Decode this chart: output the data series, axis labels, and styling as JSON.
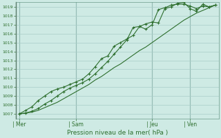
{
  "background_color": "#ceeae4",
  "grid_color": "#a8ccc8",
  "line_color1": "#2d6e2d",
  "line_color2": "#2d6e2d",
  "line_color3": "#2d6e2d",
  "spine_color": "#6a9a8a",
  "tick_color": "#2d6e2d",
  "xlabel": "Pression niveau de la mer( hPa )",
  "ylim": [
    1006.5,
    1019.5
  ],
  "yticks": [
    1007,
    1008,
    1009,
    1010,
    1011,
    1012,
    1013,
    1014,
    1015,
    1016,
    1017,
    1018,
    1019
  ],
  "xtick_labels": [
    "| Mer",
    "| Sam",
    "| Jeu",
    "| Ven"
  ],
  "xtick_positions": [
    0,
    9,
    21,
    27
  ],
  "total_points": 32,
  "series1": [
    1007.0,
    1007.1,
    1007.3,
    1007.6,
    1008.1,
    1008.5,
    1009.0,
    1009.5,
    1009.9,
    1010.2,
    1010.5,
    1010.9,
    1011.5,
    1012.2,
    1012.9,
    1013.7,
    1014.5,
    1015.3,
    1016.7,
    1016.8,
    1016.5,
    1017.0,
    1018.7,
    1018.9,
    1019.2,
    1019.3,
    1019.3,
    1019.1,
    1018.8,
    1019.1,
    1019.0,
    1019.2
  ],
  "series2": [
    1007.0,
    1007.4,
    1007.8,
    1008.5,
    1009.0,
    1009.5,
    1009.8,
    1010.0,
    1010.3,
    1010.6,
    1010.9,
    1011.5,
    1012.3,
    1013.2,
    1013.5,
    1014.6,
    1015.0,
    1015.4,
    1015.8,
    1016.8,
    1017.1,
    1017.3,
    1017.2,
    1018.8,
    1019.0,
    1019.4,
    1019.5,
    1018.8,
    1018.5,
    1019.3,
    1019.0,
    1019.2
  ],
  "series3": [
    1007.0,
    1007.1,
    1007.2,
    1007.4,
    1007.7,
    1008.0,
    1008.3,
    1008.7,
    1009.1,
    1009.5,
    1009.9,
    1010.3,
    1010.8,
    1011.2,
    1011.7,
    1012.2,
    1012.6,
    1013.1,
    1013.6,
    1014.1,
    1014.5,
    1015.0,
    1015.5,
    1016.0,
    1016.5,
    1017.0,
    1017.5,
    1017.9,
    1018.3,
    1018.6,
    1018.9,
    1019.2
  ]
}
